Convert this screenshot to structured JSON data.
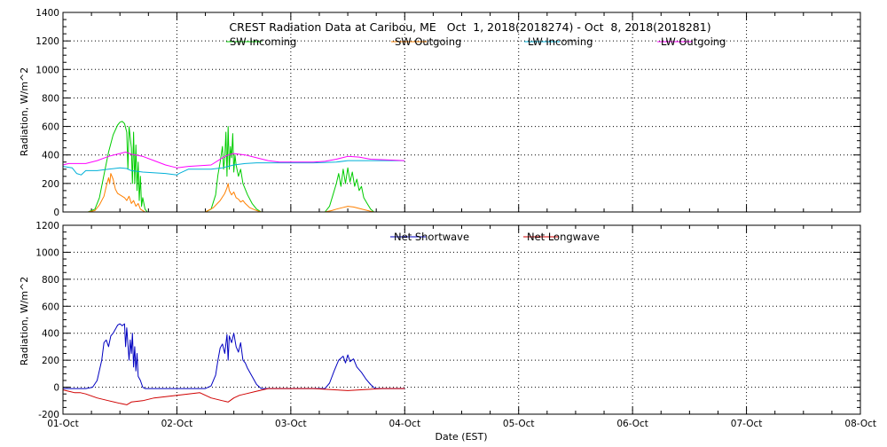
{
  "chart_data": [
    {
      "type": "line",
      "title": "CREST Radiation Data at Caribou, ME   Oct  1, 2018(2018274) - Oct  8, 2018(2018281)",
      "xlabel": "",
      "ylabel": "Radiation, W/m^2",
      "xlim": [
        0,
        7
      ],
      "ylim": [
        0,
        1400
      ],
      "yticks": [
        0,
        200,
        400,
        600,
        800,
        1000,
        1200,
        1400
      ],
      "grid": true,
      "legend_position": "top",
      "series": [
        {
          "name": "SW Incoming",
          "color": "#00cc00",
          "points": [
            [
              0.22,
              0
            ],
            [
              0.28,
              20
            ],
            [
              0.32,
              100
            ],
            [
              0.36,
              260
            ],
            [
              0.4,
              420
            ],
            [
              0.44,
              540
            ],
            [
              0.48,
              610
            ],
            [
              0.5,
              630
            ],
            [
              0.52,
              635
            ],
            [
              0.54,
              620
            ],
            [
              0.56,
              560
            ],
            [
              0.57,
              300
            ],
            [
              0.58,
              600
            ],
            [
              0.6,
              450
            ],
            [
              0.61,
              200
            ],
            [
              0.62,
              560
            ],
            [
              0.63,
              200
            ],
            [
              0.64,
              470
            ],
            [
              0.65,
              150
            ],
            [
              0.66,
              350
            ],
            [
              0.67,
              80
            ],
            [
              0.68,
              250
            ],
            [
              0.69,
              40
            ],
            [
              0.7,
              100
            ],
            [
              0.72,
              20
            ],
            [
              0.74,
              0
            ],
            [
              1.25,
              0
            ],
            [
              1.3,
              20
            ],
            [
              1.34,
              120
            ],
            [
              1.36,
              260
            ],
            [
              1.38,
              350
            ],
            [
              1.4,
              460
            ],
            [
              1.41,
              300
            ],
            [
              1.42,
              380
            ],
            [
              1.43,
              560
            ],
            [
              1.44,
              250
            ],
            [
              1.45,
              600
            ],
            [
              1.46,
              300
            ],
            [
              1.47,
              460
            ],
            [
              1.48,
              380
            ],
            [
              1.49,
              550
            ],
            [
              1.5,
              280
            ],
            [
              1.51,
              400
            ],
            [
              1.52,
              330
            ],
            [
              1.54,
              250
            ],
            [
              1.56,
              300
            ],
            [
              1.58,
              200
            ],
            [
              1.6,
              160
            ],
            [
              1.62,
              120
            ],
            [
              1.66,
              60
            ],
            [
              1.7,
              20
            ],
            [
              1.74,
              0
            ],
            [
              2.3,
              0
            ],
            [
              2.34,
              40
            ],
            [
              2.37,
              120
            ],
            [
              2.4,
              200
            ],
            [
              2.42,
              270
            ],
            [
              2.44,
              180
            ],
            [
              2.46,
              300
            ],
            [
              2.48,
              200
            ],
            [
              2.5,
              310
            ],
            [
              2.52,
              210
            ],
            [
              2.54,
              280
            ],
            [
              2.56,
              180
            ],
            [
              2.58,
              230
            ],
            [
              2.6,
              150
            ],
            [
              2.62,
              180
            ],
            [
              2.64,
              100
            ],
            [
              2.67,
              60
            ],
            [
              2.7,
              20
            ],
            [
              2.73,
              0
            ]
          ]
        },
        {
          "name": "SW Outgoing",
          "color": "#ff8000",
          "points": [
            [
              0.22,
              0
            ],
            [
              0.28,
              10
            ],
            [
              0.32,
              50
            ],
            [
              0.36,
              110
            ],
            [
              0.38,
              180
            ],
            [
              0.4,
              240
            ],
            [
              0.41,
              200
            ],
            [
              0.42,
              270
            ],
            [
              0.44,
              230
            ],
            [
              0.46,
              160
            ],
            [
              0.48,
              130
            ],
            [
              0.5,
              120
            ],
            [
              0.52,
              110
            ],
            [
              0.54,
              100
            ],
            [
              0.56,
              80
            ],
            [
              0.58,
              110
            ],
            [
              0.6,
              60
            ],
            [
              0.62,
              80
            ],
            [
              0.64,
              40
            ],
            [
              0.66,
              60
            ],
            [
              0.68,
              20
            ],
            [
              0.7,
              10
            ],
            [
              0.72,
              0
            ],
            [
              1.25,
              0
            ],
            [
              1.32,
              30
            ],
            [
              1.38,
              80
            ],
            [
              1.42,
              130
            ],
            [
              1.44,
              170
            ],
            [
              1.45,
              200
            ],
            [
              1.46,
              150
            ],
            [
              1.48,
              120
            ],
            [
              1.5,
              140
            ],
            [
              1.52,
              100
            ],
            [
              1.54,
              90
            ],
            [
              1.56,
              70
            ],
            [
              1.58,
              80
            ],
            [
              1.6,
              60
            ],
            [
              1.64,
              30
            ],
            [
              1.7,
              10
            ],
            [
              1.74,
              0
            ],
            [
              2.3,
              0
            ],
            [
              2.36,
              10
            ],
            [
              2.4,
              20
            ],
            [
              2.45,
              30
            ],
            [
              2.5,
              40
            ],
            [
              2.55,
              35
            ],
            [
              2.6,
              25
            ],
            [
              2.65,
              15
            ],
            [
              2.7,
              5
            ],
            [
              2.73,
              0
            ]
          ]
        },
        {
          "name": "LW Incoming",
          "color": "#00b0d8",
          "points": [
            [
              0,
              320
            ],
            [
              0.08,
              310
            ],
            [
              0.12,
              270
            ],
            [
              0.16,
              260
            ],
            [
              0.2,
              290
            ],
            [
              0.3,
              290
            ],
            [
              0.4,
              300
            ],
            [
              0.5,
              310
            ],
            [
              0.56,
              305
            ],
            [
              0.6,
              290
            ],
            [
              0.7,
              280
            ],
            [
              0.9,
              270
            ],
            [
              1.0,
              260
            ],
            [
              1.02,
              270
            ],
            [
              1.1,
              300
            ],
            [
              1.3,
              300
            ],
            [
              1.4,
              310
            ],
            [
              1.5,
              330
            ],
            [
              1.6,
              340
            ],
            [
              1.7,
              345
            ],
            [
              1.9,
              345
            ],
            [
              2.2,
              345
            ],
            [
              2.4,
              350
            ],
            [
              2.5,
              360
            ],
            [
              2.7,
              360
            ],
            [
              3.0,
              360
            ]
          ]
        },
        {
          "name": "LW Outgoing",
          "color": "#ff00ff",
          "points": [
            [
              0,
              330
            ],
            [
              0.05,
              340
            ],
            [
              0.2,
              340
            ],
            [
              0.3,
              360
            ],
            [
              0.4,
              390
            ],
            [
              0.5,
              410
            ],
            [
              0.55,
              420
            ],
            [
              0.6,
              405
            ],
            [
              0.7,
              390
            ],
            [
              0.8,
              360
            ],
            [
              0.9,
              330
            ],
            [
              1.0,
              310
            ],
            [
              1.1,
              320
            ],
            [
              1.3,
              330
            ],
            [
              1.4,
              380
            ],
            [
              1.45,
              400
            ],
            [
              1.5,
              410
            ],
            [
              1.6,
              400
            ],
            [
              1.7,
              380
            ],
            [
              1.8,
              360
            ],
            [
              1.9,
              350
            ],
            [
              2.2,
              350
            ],
            [
              2.3,
              355
            ],
            [
              2.4,
              370
            ],
            [
              2.5,
              390
            ],
            [
              2.6,
              385
            ],
            [
              2.7,
              370
            ],
            [
              3.0,
              360
            ]
          ]
        }
      ]
    },
    {
      "type": "line",
      "title": "",
      "xlabel": "Date (EST)",
      "ylabel": "Radiation, W/m^2",
      "xlim": [
        0,
        7
      ],
      "ylim": [
        -200,
        1200
      ],
      "yticks": [
        -200,
        0,
        200,
        400,
        600,
        800,
        1000,
        1200
      ],
      "categories": [
        "01-Oct",
        "02-Oct",
        "03-Oct",
        "04-Oct",
        "05-Oct",
        "06-Oct",
        "07-Oct",
        "08-Oct"
      ],
      "grid": true,
      "legend_position": "top",
      "series": [
        {
          "name": "Net Shortwave",
          "color": "#0000c0",
          "points": [
            [
              0,
              -10
            ],
            [
              0.2,
              -10
            ],
            [
              0.26,
              0
            ],
            [
              0.3,
              50
            ],
            [
              0.34,
              200
            ],
            [
              0.36,
              330
            ],
            [
              0.38,
              350
            ],
            [
              0.4,
              300
            ],
            [
              0.42,
              380
            ],
            [
              0.44,
              400
            ],
            [
              0.46,
              430
            ],
            [
              0.48,
              460
            ],
            [
              0.5,
              470
            ],
            [
              0.52,
              455
            ],
            [
              0.54,
              470
            ],
            [
              0.55,
              300
            ],
            [
              0.56,
              440
            ],
            [
              0.58,
              200
            ],
            [
              0.59,
              350
            ],
            [
              0.6,
              250
            ],
            [
              0.61,
              400
            ],
            [
              0.62,
              150
            ],
            [
              0.63,
              300
            ],
            [
              0.64,
              120
            ],
            [
              0.65,
              250
            ],
            [
              0.66,
              80
            ],
            [
              0.68,
              50
            ],
            [
              0.7,
              0
            ],
            [
              0.72,
              -10
            ],
            [
              1.25,
              -10
            ],
            [
              1.3,
              10
            ],
            [
              1.34,
              90
            ],
            [
              1.36,
              200
            ],
            [
              1.38,
              290
            ],
            [
              1.4,
              320
            ],
            [
              1.42,
              250
            ],
            [
              1.44,
              390
            ],
            [
              1.45,
              200
            ],
            [
              1.46,
              380
            ],
            [
              1.48,
              330
            ],
            [
              1.5,
              400
            ],
            [
              1.52,
              300
            ],
            [
              1.54,
              260
            ],
            [
              1.56,
              330
            ],
            [
              1.58,
              200
            ],
            [
              1.6,
              180
            ],
            [
              1.62,
              140
            ],
            [
              1.66,
              80
            ],
            [
              1.7,
              20
            ],
            [
              1.74,
              -10
            ],
            [
              2.3,
              -10
            ],
            [
              2.34,
              30
            ],
            [
              2.38,
              120
            ],
            [
              2.42,
              200
            ],
            [
              2.46,
              230
            ],
            [
              2.48,
              180
            ],
            [
              2.5,
              240
            ],
            [
              2.52,
              190
            ],
            [
              2.55,
              210
            ],
            [
              2.58,
              150
            ],
            [
              2.62,
              110
            ],
            [
              2.66,
              60
            ],
            [
              2.7,
              20
            ],
            [
              2.74,
              -10
            ],
            [
              3.0,
              -10
            ]
          ]
        },
        {
          "name": "Net Longwave",
          "color": "#d00000",
          "points": [
            [
              0,
              -20
            ],
            [
              0.05,
              -30
            ],
            [
              0.1,
              -40
            ],
            [
              0.15,
              -40
            ],
            [
              0.2,
              -50
            ],
            [
              0.3,
              -80
            ],
            [
              0.4,
              -100
            ],
            [
              0.5,
              -120
            ],
            [
              0.56,
              -130
            ],
            [
              0.6,
              -110
            ],
            [
              0.7,
              -100
            ],
            [
              0.8,
              -80
            ],
            [
              0.9,
              -70
            ],
            [
              1.0,
              -60
            ],
            [
              1.1,
              -50
            ],
            [
              1.2,
              -40
            ],
            [
              1.3,
              -80
            ],
            [
              1.4,
              -100
            ],
            [
              1.45,
              -110
            ],
            [
              1.5,
              -80
            ],
            [
              1.55,
              -60
            ],
            [
              1.6,
              -50
            ],
            [
              1.7,
              -30
            ],
            [
              1.8,
              -10
            ],
            [
              2.0,
              -10
            ],
            [
              2.2,
              -10
            ],
            [
              2.3,
              -15
            ],
            [
              2.4,
              -20
            ],
            [
              2.5,
              -25
            ],
            [
              2.6,
              -20
            ],
            [
              2.7,
              -15
            ],
            [
              2.8,
              -10
            ],
            [
              3.0,
              -10
            ]
          ]
        }
      ]
    }
  ]
}
